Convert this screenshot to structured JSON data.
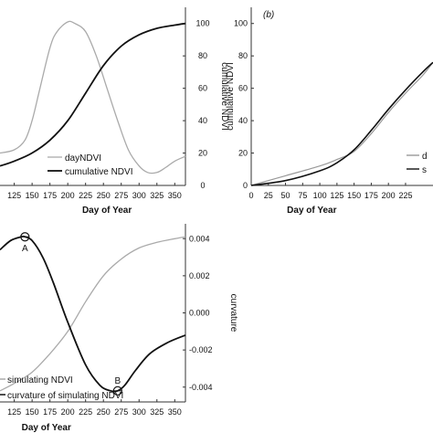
{
  "chart_data": [
    {
      "type": "line",
      "panel": "a",
      "x_ticks": [
        "125",
        "150",
        "175",
        "200",
        "225",
        "250",
        "275",
        "300",
        "325",
        "350"
      ],
      "xlim": [
        105,
        365
      ],
      "right_ylabel": "cumulative NDVI",
      "right_ylim": [
        0,
        110
      ],
      "right_ticks": [
        "0",
        "20",
        "40",
        "60",
        "80",
        "100"
      ],
      "xlabel": "Day of Year",
      "series": [
        {
          "name": "dayNDVI",
          "color": "#aaaaaa",
          "x": [
            105,
            125,
            140,
            150,
            160,
            175,
            185,
            200,
            210,
            225,
            240,
            255,
            270,
            285,
            300,
            312,
            325,
            337,
            350,
            365
          ],
          "y": [
            20,
            22,
            28,
            40,
            58,
            85,
            95,
            101,
            100,
            95,
            80,
            60,
            40,
            22,
            12,
            8,
            8,
            11,
            15,
            18
          ]
        },
        {
          "name": "cumulative NDVI",
          "color": "#111111",
          "x": [
            105,
            125,
            150,
            175,
            200,
            225,
            250,
            275,
            300,
            325,
            350,
            365
          ],
          "y": [
            12,
            15,
            20,
            28,
            40,
            57,
            74,
            86,
            93,
            97,
            99,
            100
          ]
        }
      ]
    },
    {
      "type": "line",
      "panel": "b",
      "panel_label": "(b)",
      "ylabel": "cumulative NDVI",
      "ylim": [
        0,
        110
      ],
      "y_ticks": [
        "0",
        "20",
        "40",
        "60",
        "80",
        "100"
      ],
      "x_ticks": [
        "0",
        "25",
        "50",
        "75",
        "100",
        "125",
        "150",
        "175",
        "200",
        "225"
      ],
      "xlim": [
        0,
        265
      ],
      "xlabel": "Day of Year",
      "legend": [
        "d",
        "s"
      ],
      "series": [
        {
          "name": "",
          "color": "#999999",
          "x": [
            0,
            50,
            100,
            125,
            150,
            175,
            200,
            225,
            250,
            265
          ],
          "y": [
            0,
            6,
            12,
            16,
            21,
            32,
            45,
            57,
            68,
            76
          ]
        },
        {
          "name": "",
          "color": "#111111",
          "x": [
            0,
            50,
            100,
            125,
            150,
            175,
            200,
            225,
            250,
            265
          ],
          "y": [
            0,
            3,
            9,
            14,
            22,
            34,
            47,
            59,
            70,
            76
          ]
        }
      ]
    },
    {
      "type": "line",
      "panel": "c",
      "x_ticks": [
        "125",
        "150",
        "175",
        "200",
        "225",
        "250",
        "275",
        "300",
        "325",
        "350"
      ],
      "xlim": [
        105,
        365
      ],
      "right_ylabel": "curvature",
      "right_ylim": [
        -0.0048,
        0.0048
      ],
      "right_ticks": [
        "0.004",
        "0.002",
        "0.000",
        "-0.002",
        "-0.004"
      ],
      "xlabel": "Day of Year",
      "markers": [
        {
          "label": "A",
          "x": 140,
          "y": 0.0041
        },
        {
          "label": "B",
          "x": 270,
          "y": -0.0042
        }
      ],
      "series": [
        {
          "name": "simulating NDVI",
          "color": "#aaaaaa",
          "x": [
            105,
            125,
            150,
            175,
            200,
            225,
            250,
            275,
            300,
            325,
            350,
            365
          ],
          "y": [
            -0.0042,
            -0.0038,
            -0.0032,
            -0.0022,
            -0.001,
            0.0006,
            0.002,
            0.0029,
            0.0035,
            0.0038,
            0.004,
            0.0041
          ]
        },
        {
          "name": "curvature of simulating NDVI",
          "color": "#111111",
          "x": [
            105,
            120,
            135,
            140,
            150,
            165,
            180,
            200,
            225,
            245,
            260,
            270,
            280,
            295,
            315,
            340,
            365
          ],
          "y": [
            0.0034,
            0.0039,
            0.0041,
            0.0041,
            0.0039,
            0.003,
            0.0016,
            -0.0005,
            -0.0028,
            -0.0039,
            -0.0042,
            -0.0042,
            -0.0039,
            -0.0031,
            -0.0022,
            -0.0016,
            -0.0012
          ]
        }
      ]
    }
  ]
}
